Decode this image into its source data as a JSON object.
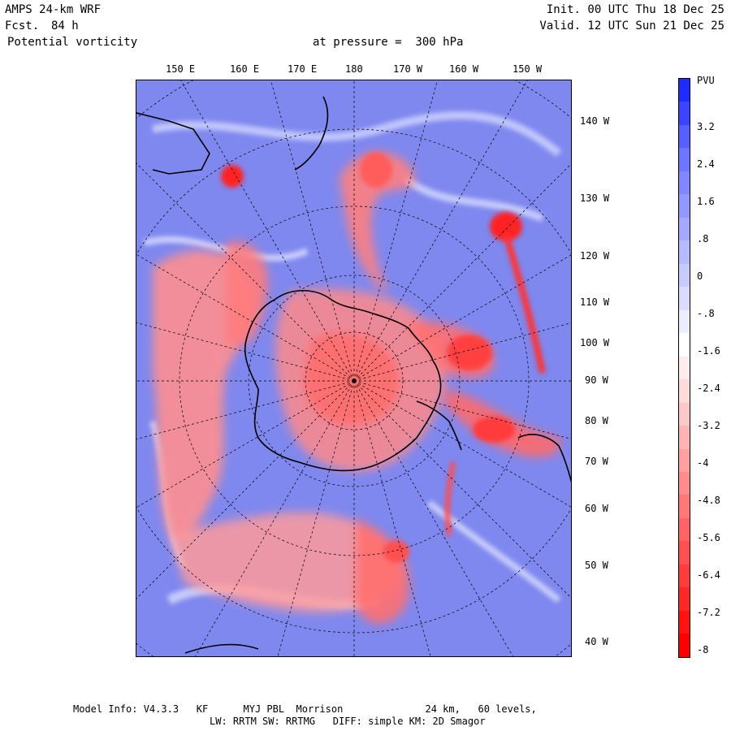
{
  "header": {
    "model": "AMPS 24-km WRF",
    "forecast_label": "Fcst.",
    "forecast_value": "84 h",
    "field": "Potential vorticity",
    "level_text": "at pressure =  300 hPa",
    "init": "Init. 00 UTC Thu 18 Dec 25",
    "valid": "Valid. 12 UTC Sun 21 Dec 25"
  },
  "top_longitudes": [
    "150 E",
    "160 E",
    "170 E",
    "180",
    "170 W",
    "160 W",
    "150 W"
  ],
  "right_longitudes": [
    "140 W",
    "130 W",
    "120 W",
    "110 W",
    "100 W",
    "90 W",
    "80 W",
    "70 W",
    "60 W",
    "50 W",
    "40 W"
  ],
  "colorbar": {
    "unit": "PVU",
    "labels": [
      "3.2",
      "2.4",
      "1.6",
      ".8",
      "0",
      "-.8",
      "-1.6",
      "-2.4",
      "-3.2",
      "-4",
      "-4.8",
      "-5.6",
      "-6.4",
      "-7.2",
      "-8"
    ],
    "colors": [
      "#1f2cff",
      "#3b45ff",
      "#5660ff",
      "#6d76ff",
      "#8087ff",
      "#9298ff",
      "#a4a9ff",
      "#b6baff",
      "#c8cbff",
      "#dadcff",
      "#ecedff",
      "#ffffff",
      "#ffecec",
      "#ffdada",
      "#ffc8c8",
      "#ffb4b4",
      "#ffa0a0",
      "#ff8c8c",
      "#ff7878",
      "#ff6464",
      "#ff5050",
      "#ff3c3c",
      "#ff2828",
      "#ff1414",
      "#ff0000"
    ]
  },
  "footer": {
    "line1": "Model Info: V4.3.3   KF      MYJ PBL  Morrison              24 km,   60 levels,",
    "line2": "LW: RRTM SW: RRTMG   DIFF: simple KM: 2D Smagor"
  }
}
